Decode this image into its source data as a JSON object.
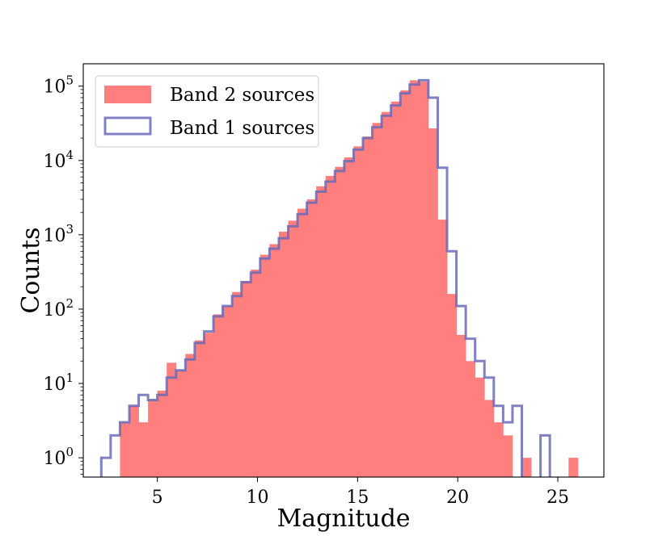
{
  "chart_data": {
    "type": "histogram",
    "xlabel": "Magnitude",
    "ylabel": "Counts",
    "xlim": [
      1.3,
      27.3
    ],
    "ylim": [
      0.55,
      200000
    ],
    "yscale": "log",
    "x_ticks": [
      5,
      10,
      15,
      20,
      25
    ],
    "y_tick_values": [
      1,
      10,
      100,
      1000,
      10000,
      100000
    ],
    "y_tick_labels": [
      {
        "base": "10",
        "exp": "0"
      },
      {
        "base": "10",
        "exp": "1"
      },
      {
        "base": "10",
        "exp": "2"
      },
      {
        "base": "10",
        "exp": "3"
      },
      {
        "base": "10",
        "exp": "4"
      },
      {
        "base": "10",
        "exp": "5"
      }
    ],
    "bin_width": 0.4667,
    "bin_start": 2.2,
    "legend": {
      "placement": "top-left"
    },
    "series": [
      {
        "name": "Band 2 sources",
        "style": "filled",
        "color": "#ff7f7f",
        "values": [
          0,
          0,
          3,
          5,
          3,
          6,
          8,
          19,
          15,
          25,
          38,
          48,
          85,
          110,
          170,
          240,
          340,
          540,
          750,
          1100,
          1550,
          2250,
          3000,
          4500,
          6200,
          8200,
          11000,
          15500,
          21000,
          32000,
          45000,
          62000,
          88000,
          120000,
          115000,
          27000,
          1600,
          160,
          45,
          20,
          12,
          6,
          3,
          2,
          0,
          1,
          0,
          0,
          0,
          0,
          1
        ]
      },
      {
        "name": "Band 1 sources",
        "style": "step",
        "color": "#6a6ab8",
        "values": [
          1,
          2,
          3,
          5,
          7,
          6,
          7,
          12,
          15,
          21,
          35,
          50,
          80,
          110,
          150,
          230,
          310,
          480,
          650,
          900,
          1300,
          1900,
          2700,
          3800,
          5200,
          7200,
          9800,
          14000,
          20000,
          28000,
          40000,
          55000,
          80000,
          105000,
          120000,
          70000,
          8000,
          600,
          110,
          40,
          20,
          12,
          5,
          3,
          5,
          0,
          0,
          2,
          0,
          0,
          0
        ]
      }
    ]
  }
}
